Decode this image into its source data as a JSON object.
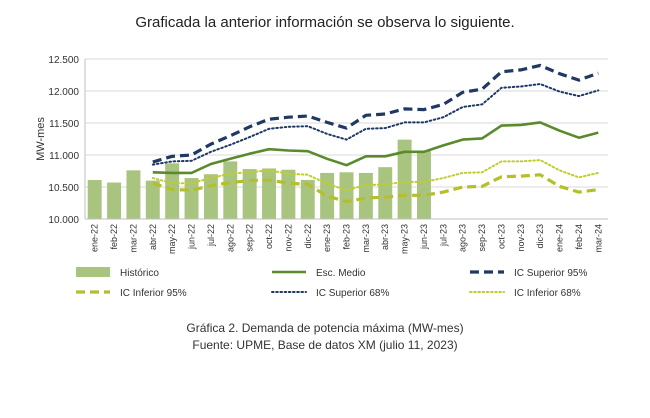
{
  "intro_text": "Graficada la anterior información se observa lo siguiente.",
  "caption": "Gráfica 2. Demanda de potencia máxima (MW-mes)",
  "source": "Fuente: UPME, Base de datos XM (julio 11, 2023)",
  "chart_data": {
    "type": "bar",
    "ylabel": "MW-mes",
    "ylim": [
      10.0,
      12.5
    ],
    "yticks": [
      "10.000",
      "10.500",
      "11.000",
      "11.500",
      "12.000",
      "12.500"
    ],
    "grid": true,
    "legend_position": "bottom",
    "categories": [
      "ene-22",
      "feb-22",
      "mar-22",
      "abr-22",
      "may-22",
      "jun-22",
      "jul-22",
      "ago-22",
      "sep-22",
      "oct-22",
      "nov-22",
      "dic-22",
      "ene-23",
      "feb-23",
      "mar-23",
      "abr-23",
      "may-23",
      "jun-23",
      "jul-23",
      "ago-23",
      "sep-23",
      "oct-23",
      "nov-23",
      "dic-23",
      "ene-24",
      "feb-24",
      "mar-24"
    ],
    "series": [
      {
        "name": "Histórico",
        "kind": "bar",
        "color": "#a9c47f",
        "values": [
          10.61,
          10.57,
          10.76,
          10.6,
          10.87,
          10.64,
          10.7,
          10.9,
          10.78,
          10.79,
          10.77,
          10.61,
          10.72,
          10.73,
          10.72,
          10.81,
          11.24,
          11.07,
          null,
          null,
          null,
          null,
          null,
          null,
          null,
          null,
          null
        ]
      },
      {
        "name": "Esc. Medio",
        "kind": "line",
        "color": "#5a8a2c",
        "dash": "solid",
        "values": [
          null,
          null,
          null,
          10.73,
          10.72,
          10.72,
          10.86,
          10.94,
          11.02,
          11.09,
          11.07,
          11.06,
          10.94,
          10.84,
          10.98,
          10.98,
          11.05,
          11.05,
          11.15,
          11.24,
          11.26,
          11.46,
          11.47,
          11.51,
          11.38,
          11.27,
          11.35
        ]
      },
      {
        "name": "IC Superior 95%",
        "kind": "line",
        "color": "#1f3864",
        "dash": "dash",
        "values": [
          null,
          null,
          null,
          10.89,
          10.98,
          11.0,
          11.17,
          11.3,
          11.44,
          11.56,
          11.59,
          11.61,
          11.51,
          11.42,
          11.62,
          11.64,
          11.72,
          11.71,
          11.79,
          11.98,
          12.03,
          12.3,
          12.33,
          12.4,
          12.27,
          12.17,
          12.28
        ]
      },
      {
        "name": "IC Inferior 95%",
        "kind": "line",
        "color": "#b5bf2a",
        "dash": "dash",
        "values": [
          null,
          null,
          null,
          10.56,
          10.46,
          10.45,
          10.52,
          10.57,
          10.6,
          10.61,
          10.56,
          10.54,
          10.36,
          10.27,
          10.33,
          10.34,
          10.37,
          10.37,
          10.42,
          10.5,
          10.51,
          10.66,
          10.67,
          10.69,
          10.51,
          10.42,
          10.46
        ]
      },
      {
        "name": "IC Superior 68%",
        "kind": "line",
        "color": "#1f3864",
        "dash": "dot",
        "values": [
          null,
          null,
          null,
          10.85,
          10.9,
          10.91,
          11.05,
          11.16,
          11.28,
          11.41,
          11.44,
          11.45,
          11.33,
          11.24,
          11.41,
          11.42,
          11.51,
          11.51,
          11.59,
          11.75,
          11.79,
          12.05,
          12.07,
          12.11,
          11.99,
          11.92,
          12.01
        ]
      },
      {
        "name": "IC Inferior 68%",
        "kind": "line",
        "color": "#c2cc2e",
        "dash": "dot",
        "values": [
          null,
          null,
          null,
          10.64,
          10.56,
          10.56,
          10.64,
          10.71,
          10.73,
          10.76,
          10.71,
          10.69,
          10.55,
          10.45,
          10.53,
          10.54,
          10.58,
          10.58,
          10.64,
          10.72,
          10.73,
          10.9,
          10.9,
          10.92,
          10.76,
          10.65,
          10.72
        ]
      }
    ]
  }
}
